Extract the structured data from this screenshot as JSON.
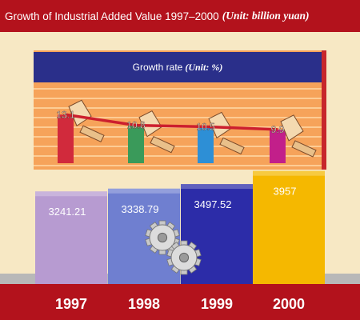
{
  "header": {
    "title": "Growth of Industrial Added Value 1997–2000",
    "unit": "(Unit: billion yuan)"
  },
  "rate_panel": {
    "title": "Growth rate",
    "unit": "(Unit: %)"
  },
  "colors": {
    "header_bg": "#b3121c",
    "panel_bg": "#f6a35a",
    "title_bar": "#2a2f8a",
    "bar_1997": "#b79bd1",
    "bar_1998": "#6f7fd0",
    "bar_1999": "#2c2ca8",
    "bar_2000": "#f5b800",
    "rate_1997": "#d12a3c",
    "rate_1998": "#3a9a5a",
    "rate_1999": "#2d8fd6",
    "rate_2000": "#c21f8a",
    "trend_line": "#cc1f2e"
  },
  "chart_data": [
    {
      "type": "line",
      "title": "Growth rate",
      "ylabel": "(Unit: %)",
      "categories": [
        "1997",
        "1998",
        "1999",
        "2000"
      ],
      "values": [
        13.1,
        10.8,
        10.5,
        9.9
      ],
      "value_labels": [
        "13.1",
        "10.8",
        "10.5",
        "9.9"
      ],
      "grid": true
    },
    {
      "type": "bar",
      "title": "Growth of Industrial Added Value 1997–2000",
      "ylabel": "(Unit: billion yuan)",
      "categories": [
        "1997",
        "1998",
        "1999",
        "2000"
      ],
      "values": [
        3241.21,
        3338.79,
        3497.52,
        3957
      ],
      "value_labels": [
        "3241.21",
        "3338.79",
        "3497.52",
        "3957"
      ]
    }
  ]
}
